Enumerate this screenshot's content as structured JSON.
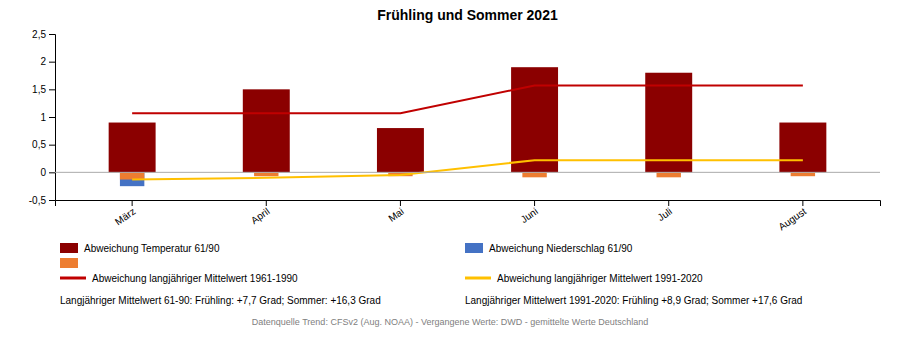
{
  "chart_data": {
    "type": "bar",
    "title": "Frühling und Sommer 2021",
    "categories": [
      "März",
      "April",
      "Mai",
      "Juni",
      "Juli",
      "August"
    ],
    "series": [
      {
        "name": "Abweichung Temperatur 61/90",
        "type": "bar",
        "color": "#8B0000",
        "values": [
          0.9,
          1.5,
          0.8,
          1.9,
          1.8,
          0.9
        ]
      },
      {
        "name": "Abweichung Niederschlag 61/90",
        "type": "bar",
        "color": "#4472C4",
        "values": [
          -0.25,
          0.0,
          0.0,
          0.0,
          0.0,
          0.0
        ]
      },
      {
        "type": "bar",
        "color": "#ED7D31",
        "values": [
          -0.13,
          -0.07,
          -0.07,
          -0.09,
          -0.09,
          -0.07
        ]
      },
      {
        "name": "Abweichung langjähriger Mittelwert 1961-1990",
        "type": "line",
        "color": "#C00000",
        "values": [
          1.07,
          1.07,
          1.07,
          1.57,
          1.57,
          1.57
        ]
      },
      {
        "name": "Abweichung langjähriger Mittelwert 1991-2020",
        "type": "line",
        "color": "#FFC000",
        "values": [
          -0.13,
          -0.1,
          -0.05,
          0.22,
          0.22,
          0.22
        ]
      }
    ],
    "ylim": [
      -0.5,
      2.5
    ],
    "yticks": [
      {
        "value": -0.5,
        "label": "-0,5"
      },
      0,
      {
        "value": 0.5,
        "label": "0,5"
      },
      1,
      {
        "value": 1.5,
        "label": "1,5"
      },
      2,
      {
        "value": 2.5,
        "label": "2,5"
      }
    ],
    "grid": false,
    "legend": "bottom",
    "annotations": [
      "Langjähriger Mittelwert 61-90: Frühling: +7,7 Grad; Sommer: +16,3 Grad",
      "Langjähriger Mittelwert 1991-2020: Frühling +8,9 Grad; Sommer +17,6 Grad",
      "Datenquelle Trend: CFSv2 (Aug. NOAA) - Vergangene Werte: DWD - gemittelte Werte Deutschland"
    ]
  }
}
